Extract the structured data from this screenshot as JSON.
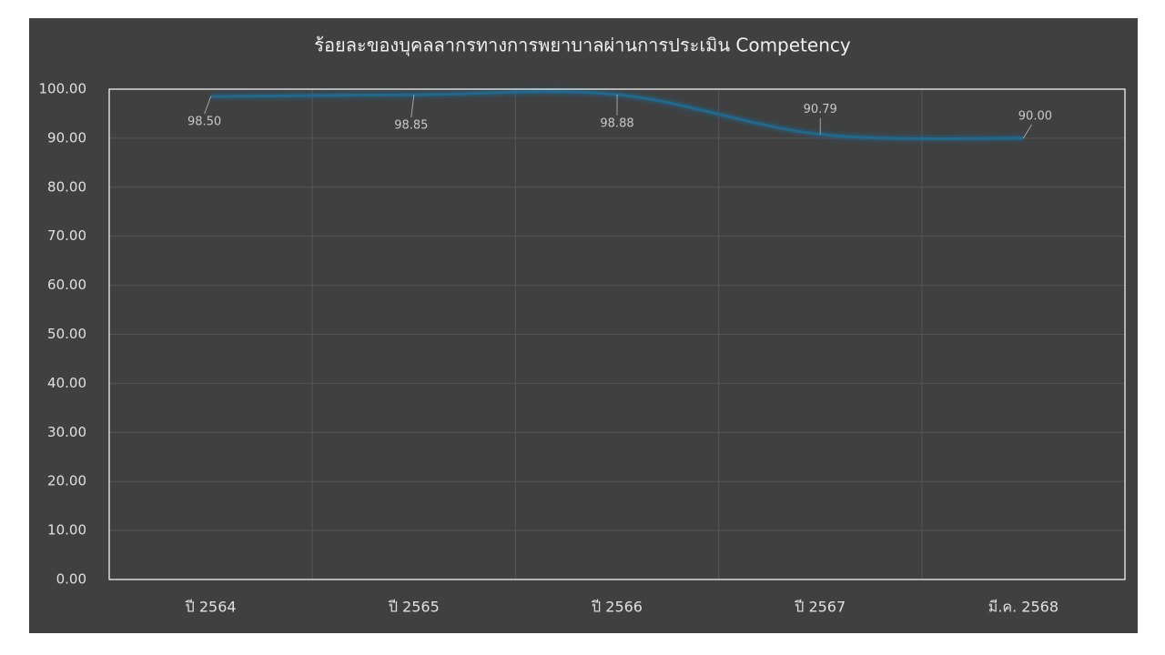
{
  "chart_data": {
    "type": "line",
    "title": "ร้อยละของบุคลลากรทางการพยาบาลผ่านการประเมิน Competency",
    "categories": [
      "ปี 2564",
      "ปี 2565",
      "ปี 2566",
      "ปี 2567",
      "มี.ค. 2568"
    ],
    "series": [
      {
        "name": "ร้อยละ",
        "color": "#1f6b92",
        "values": [
          98.5,
          98.85,
          98.88,
          90.79,
          90.0
        ],
        "value_labels": [
          "98.50",
          "98.85",
          "98.88",
          "90.79",
          "90.00"
        ]
      }
    ],
    "ylim": [
      0,
      100
    ],
    "yticks": [
      {
        "value": 0,
        "label": "0.00"
      },
      {
        "value": 10,
        "label": "10.00"
      },
      {
        "value": 20,
        "label": "20.00"
      },
      {
        "value": 30,
        "label": "30.00"
      },
      {
        "value": 40,
        "label": "40.00"
      },
      {
        "value": 50,
        "label": "50.00"
      },
      {
        "value": 60,
        "label": "60.00"
      },
      {
        "value": 70,
        "label": "70.00"
      },
      {
        "value": 80,
        "label": "80.00"
      },
      {
        "value": 90,
        "label": "90.00"
      },
      {
        "value": 100,
        "label": "100.00"
      }
    ],
    "grid": true,
    "smooth": true
  }
}
